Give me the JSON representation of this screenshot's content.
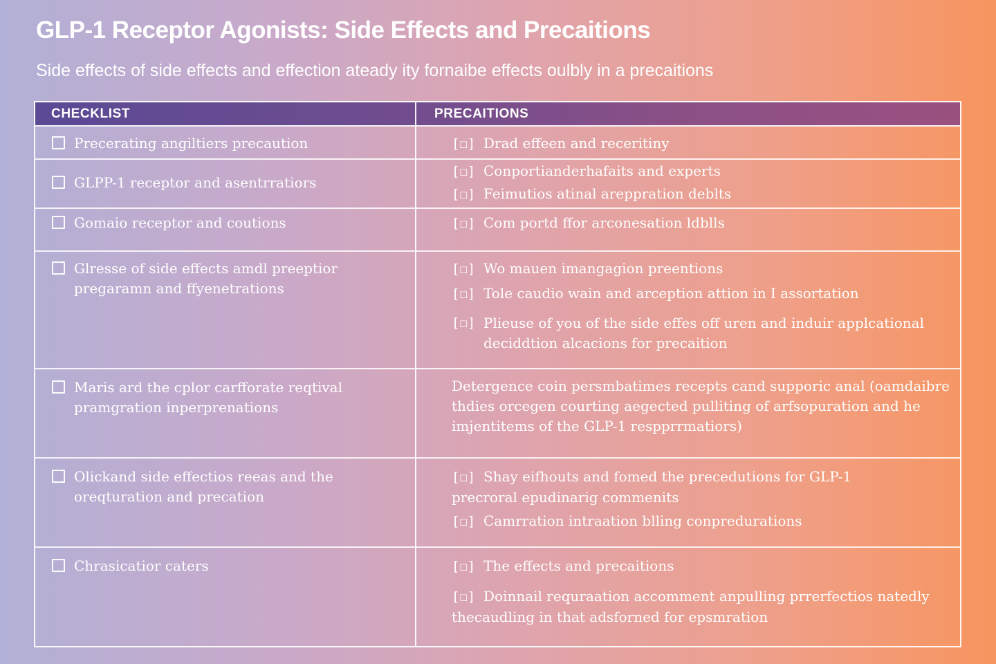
{
  "title": "GLP-1 Receptor Agonists: Side Effects and Precaitions",
  "subtitle": "Side effects of side effects and effection ateady ity fornaibe effects oulbly in a precaitions",
  "table": {
    "headers": {
      "checklist": "CHECKLIST",
      "precautions": "PRECAITIONS"
    },
    "checkbox_glyph": "[☐]",
    "rows": [
      {
        "checklist": "Precerating angiltiers precaution",
        "precautions": [
          "Drad effeen and receritiny"
        ]
      },
      {
        "checklist": "GLPP-1 receptor and asentrratiors",
        "precautions": [
          "Conportianderhafaits and experts",
          "Feimutios atinal areppration deblts"
        ]
      },
      {
        "checklist": "Gomaio receptor and coutions",
        "precautions": [
          "Com portd ffor arconesation ldblls"
        ]
      },
      {
        "checklist": "Glresse of side effects amdl preeptior pregaramn and ffyenetrations",
        "precautions": [
          "Wo mauen imangagion preentions",
          "Tole caudio wain and arception attion in I assortation",
          "Plieuse of you of the side effes off uren and induir applcational deciddtion alcacions for precaition"
        ]
      },
      {
        "checklist": "Maris ard the cplor carfforate reqtival pramgration inperprenations",
        "paragraph": "Detergence coin persmbatimes recepts cand supporic anal (oamdaibre thdies orcegen courting aegected pulliting of arfsopuration and he imjentitems of the GLP-1 respprrmatiors)"
      },
      {
        "checklist": "Olickand side effectios reeas and the oreqturation and precation",
        "precautions": [
          "Shay eifhouts and fomed the precedutions for GLP-1 precroral epudinarig commenits",
          "Camrration intraation blling conpredurations"
        ]
      },
      {
        "checklist": "Chrasicatior caters",
        "precautions": [
          "The effects and precaitions",
          "Doinnail requraation accomment anpulling prrerfectios natedly thecaudling in that adsforned for epsmration"
        ]
      }
    ]
  }
}
